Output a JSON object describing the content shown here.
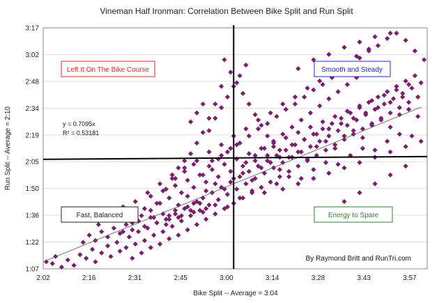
{
  "chart_data": {
    "type": "scatter",
    "title": "Vineman Half Ironman: Correlation Between Bike Split and Run Split",
    "xlabel": "Bike Split -- Average = 3:04",
    "ylabel": "Run Split -- Average = 2:10",
    "xlim_min": [
      122,
      247
    ],
    "ylim_min": [
      67,
      203
    ],
    "x_ticks": [
      "2:02",
      "2:16",
      "2:31",
      "2:45",
      "3:00",
      "3:14",
      "3:28",
      "3:43",
      "3:57"
    ],
    "y_ticks": [
      "1:07",
      "1:22",
      "1:36",
      "1:50",
      "2:05",
      "2:19",
      "2:34",
      "2:48",
      "3:02",
      "3:17"
    ],
    "grid": "horizontal",
    "marker": "diamond",
    "series_color": "#7a1f6e",
    "averages": {
      "bike_min": 184,
      "run_min": 130
    },
    "trendline": {
      "equation": "y = 0.7095x",
      "r2": "R² = 0.53181",
      "slope": 0.7095
    },
    "annotations": [
      {
        "text": "Left It On The Bike Course",
        "color": "#e8251f",
        "quadrant": "top-left"
      },
      {
        "text": "Smooth and Steady",
        "color": "#2222cc",
        "quadrant": "top-right"
      },
      {
        "text": "Fast, Balanced",
        "color": "#222222",
        "quadrant": "bottom-left"
      },
      {
        "text": "Energy to Spare",
        "color": "#2e7d32",
        "quadrant": "bottom-right"
      }
    ],
    "points": [
      [
        123,
        71
      ],
      [
        125,
        70
      ],
      [
        126,
        74
      ],
      [
        128,
        68
      ],
      [
        130,
        72
      ],
      [
        132,
        69
      ],
      [
        134,
        75
      ],
      [
        136,
        73
      ],
      [
        138,
        78
      ],
      [
        139,
        71
      ],
      [
        141,
        76
      ],
      [
        143,
        80
      ],
      [
        144,
        74
      ],
      [
        146,
        82
      ],
      [
        147,
        77
      ],
      [
        149,
        79
      ],
      [
        150,
        85
      ],
      [
        151,
        73
      ],
      [
        152,
        81
      ],
      [
        153,
        88
      ],
      [
        154,
        76
      ],
      [
        155,
        83
      ],
      [
        156,
        90
      ],
      [
        157,
        79
      ],
      [
        158,
        86
      ],
      [
        159,
        93
      ],
      [
        160,
        81
      ],
      [
        161,
        88
      ],
      [
        162,
        95
      ],
      [
        163,
        84
      ],
      [
        164,
        91
      ],
      [
        165,
        98
      ],
      [
        166,
        86
      ],
      [
        167,
        94
      ],
      [
        168,
        101
      ],
      [
        169,
        89
      ],
      [
        170,
        97
      ],
      [
        171,
        104
      ],
      [
        172,
        92
      ],
      [
        173,
        100
      ],
      [
        174,
        107
      ],
      [
        175,
        95
      ],
      [
        176,
        103
      ],
      [
        177,
        110
      ],
      [
        178,
        98
      ],
      [
        179,
        106
      ],
      [
        180,
        113
      ],
      [
        181,
        101
      ],
      [
        182,
        109
      ],
      [
        183,
        116
      ],
      [
        184,
        104
      ],
      [
        185,
        112
      ],
      [
        186,
        119
      ],
      [
        187,
        107
      ],
      [
        188,
        115
      ],
      [
        189,
        122
      ],
      [
        190,
        110
      ],
      [
        191,
        118
      ],
      [
        192,
        125
      ],
      [
        193,
        113
      ],
      [
        194,
        121
      ],
      [
        195,
        128
      ],
      [
        196,
        116
      ],
      [
        197,
        124
      ],
      [
        198,
        131
      ],
      [
        199,
        119
      ],
      [
        200,
        127
      ],
      [
        201,
        134
      ],
      [
        202,
        122
      ],
      [
        203,
        130
      ],
      [
        204,
        137
      ],
      [
        205,
        125
      ],
      [
        206,
        133
      ],
      [
        207,
        140
      ],
      [
        208,
        128
      ],
      [
        209,
        136
      ],
      [
        210,
        143
      ],
      [
        211,
        131
      ],
      [
        212,
        139
      ],
      [
        213,
        146
      ],
      [
        214,
        134
      ],
      [
        215,
        142
      ],
      [
        216,
        149
      ],
      [
        217,
        137
      ],
      [
        218,
        145
      ],
      [
        219,
        152
      ],
      [
        220,
        140
      ],
      [
        221,
        148
      ],
      [
        222,
        155
      ],
      [
        223,
        143
      ],
      [
        224,
        151
      ],
      [
        225,
        158
      ],
      [
        226,
        146
      ],
      [
        227,
        154
      ],
      [
        228,
        161
      ],
      [
        229,
        149
      ],
      [
        230,
        157
      ],
      [
        231,
        164
      ],
      [
        232,
        152
      ],
      [
        233,
        160
      ],
      [
        234,
        167
      ],
      [
        235,
        155
      ],
      [
        236,
        163
      ],
      [
        237,
        170
      ],
      [
        238,
        158
      ],
      [
        239,
        166
      ],
      [
        240,
        173
      ],
      [
        241,
        161
      ],
      [
        242,
        169
      ],
      [
        243,
        176
      ],
      [
        244,
        164
      ],
      [
        245,
        172
      ],
      [
        140,
        92
      ],
      [
        142,
        98
      ],
      [
        145,
        95
      ],
      [
        148,
        102
      ],
      [
        150,
        99
      ],
      [
        152,
        105
      ],
      [
        155,
        101
      ],
      [
        157,
        108
      ],
      [
        159,
        104
      ],
      [
        161,
        111
      ],
      [
        163,
        107
      ],
      [
        165,
        114
      ],
      [
        167,
        110
      ],
      [
        169,
        117
      ],
      [
        171,
        113
      ],
      [
        173,
        120
      ],
      [
        175,
        116
      ],
      [
        177,
        123
      ],
      [
        179,
        119
      ],
      [
        181,
        126
      ],
      [
        183,
        122
      ],
      [
        185,
        129
      ],
      [
        187,
        125
      ],
      [
        189,
        132
      ],
      [
        191,
        128
      ],
      [
        193,
        135
      ],
      [
        195,
        131
      ],
      [
        197,
        138
      ],
      [
        199,
        134
      ],
      [
        201,
        141
      ],
      [
        203,
        137
      ],
      [
        205,
        144
      ],
      [
        207,
        140
      ],
      [
        209,
        147
      ],
      [
        211,
        143
      ],
      [
        213,
        150
      ],
      [
        215,
        146
      ],
      [
        217,
        153
      ],
      [
        219,
        149
      ],
      [
        221,
        156
      ],
      [
        223,
        152
      ],
      [
        225,
        159
      ],
      [
        227,
        155
      ],
      [
        229,
        162
      ],
      [
        231,
        158
      ],
      [
        233,
        165
      ],
      [
        235,
        161
      ],
      [
        237,
        168
      ],
      [
        239,
        164
      ],
      [
        241,
        171
      ],
      [
        148,
        88
      ],
      [
        151,
        93
      ],
      [
        154,
        97
      ],
      [
        157,
        100
      ],
      [
        160,
        104
      ],
      [
        163,
        97
      ],
      [
        166,
        103
      ],
      [
        169,
        108
      ],
      [
        172,
        105
      ],
      [
        175,
        111
      ],
      [
        178,
        115
      ],
      [
        181,
        112
      ],
      [
        184,
        118
      ],
      [
        187,
        121
      ],
      [
        190,
        117
      ],
      [
        193,
        124
      ],
      [
        196,
        127
      ],
      [
        199,
        123
      ],
      [
        202,
        130
      ],
      [
        205,
        133
      ],
      [
        208,
        129
      ],
      [
        211,
        136
      ],
      [
        214,
        139
      ],
      [
        217,
        135
      ],
      [
        220,
        142
      ],
      [
        223,
        145
      ],
      [
        226,
        141
      ],
      [
        229,
        148
      ],
      [
        232,
        151
      ],
      [
        235,
        147
      ],
      [
        238,
        154
      ],
      [
        241,
        157
      ],
      [
        244,
        153
      ],
      [
        156,
        110
      ],
      [
        160,
        115
      ],
      [
        164,
        120
      ],
      [
        168,
        124
      ],
      [
        172,
        128
      ],
      [
        176,
        133
      ],
      [
        180,
        137
      ],
      [
        184,
        142
      ],
      [
        188,
        146
      ],
      [
        192,
        151
      ],
      [
        196,
        155
      ],
      [
        200,
        160
      ],
      [
        204,
        164
      ],
      [
        208,
        169
      ],
      [
        212,
        173
      ],
      [
        216,
        178
      ],
      [
        220,
        182
      ],
      [
        224,
        187
      ],
      [
        228,
        191
      ],
      [
        158,
        96
      ],
      [
        162,
        92
      ],
      [
        166,
        96
      ],
      [
        170,
        100
      ],
      [
        174,
        99
      ],
      [
        178,
        103
      ],
      [
        182,
        102
      ],
      [
        186,
        107
      ],
      [
        190,
        111
      ],
      [
        194,
        110
      ],
      [
        198,
        115
      ],
      [
        202,
        119
      ],
      [
        206,
        118
      ],
      [
        210,
        123
      ],
      [
        214,
        127
      ],
      [
        218,
        126
      ],
      [
        222,
        131
      ],
      [
        226,
        135
      ],
      [
        230,
        134
      ],
      [
        234,
        139
      ],
      [
        238,
        143
      ],
      [
        242,
        142
      ],
      [
        165,
        118
      ],
      [
        168,
        122
      ],
      [
        171,
        126
      ],
      [
        174,
        120
      ],
      [
        177,
        128
      ],
      [
        180,
        131
      ],
      [
        183,
        135
      ],
      [
        186,
        138
      ],
      [
        189,
        142
      ],
      [
        192,
        146
      ],
      [
        195,
        149
      ],
      [
        198,
        153
      ],
      [
        201,
        157
      ],
      [
        204,
        160
      ],
      [
        207,
        164
      ],
      [
        210,
        168
      ],
      [
        213,
        171
      ],
      [
        216,
        175
      ],
      [
        219,
        179
      ],
      [
        222,
        182
      ],
      [
        225,
        186
      ],
      [
        228,
        190
      ],
      [
        231,
        193
      ],
      [
        234,
        197
      ],
      [
        237,
        200
      ],
      [
        176,
        125
      ],
      [
        179,
        129
      ],
      [
        182,
        133
      ],
      [
        185,
        137
      ],
      [
        188,
        127
      ],
      [
        191,
        131
      ],
      [
        194,
        135
      ],
      [
        197,
        139
      ],
      [
        200,
        143
      ],
      [
        203,
        147
      ],
      [
        206,
        151
      ],
      [
        209,
        155
      ],
      [
        212,
        159
      ],
      [
        215,
        163
      ],
      [
        218,
        167
      ],
      [
        221,
        171
      ],
      [
        224,
        175
      ],
      [
        227,
        179
      ],
      [
        181,
        185
      ],
      [
        183,
        178
      ],
      [
        185,
        172
      ],
      [
        187,
        166
      ],
      [
        189,
        160
      ],
      [
        191,
        154
      ],
      [
        193,
        148
      ],
      [
        195,
        142
      ],
      [
        197,
        136
      ],
      [
        199,
        130
      ],
      [
        135,
        82
      ],
      [
        137,
        86
      ],
      [
        139,
        83
      ],
      [
        141,
        88
      ],
      [
        143,
        85
      ],
      [
        145,
        90
      ],
      [
        147,
        87
      ],
      [
        149,
        92
      ],
      [
        151,
        89
      ],
      [
        153,
        94
      ],
      [
        155,
        91
      ],
      [
        157,
        96
      ],
      [
        159,
        93
      ],
      [
        161,
        98
      ],
      [
        163,
        95
      ],
      [
        165,
        100
      ],
      [
        167,
        97
      ],
      [
        169,
        102
      ],
      [
        171,
        99
      ],
      [
        173,
        104
      ],
      [
        175,
        101
      ],
      [
        170,
        150
      ],
      [
        172,
        155
      ],
      [
        174,
        160
      ],
      [
        176,
        145
      ],
      [
        178,
        152
      ],
      [
        180,
        158
      ],
      [
        182,
        164
      ],
      [
        184,
        170
      ],
      [
        186,
        176
      ],
      [
        188,
        182
      ],
      [
        200,
        112
      ],
      [
        205,
        115
      ],
      [
        210,
        118
      ],
      [
        215,
        121
      ],
      [
        220,
        124
      ],
      [
        225,
        127
      ],
      [
        230,
        130
      ],
      [
        235,
        133
      ],
      [
        240,
        136
      ],
      [
        245,
        139
      ],
      [
        205,
        180
      ],
      [
        210,
        185
      ],
      [
        215,
        188
      ],
      [
        220,
        192
      ],
      [
        225,
        195
      ],
      [
        230,
        198
      ],
      [
        235,
        200
      ],
      [
        240,
        196
      ],
      [
        243,
        190
      ],
      [
        246,
        185
      ],
      [
        215,
        100
      ],
      [
        220,
        105
      ],
      [
        225,
        110
      ],
      [
        230,
        115
      ],
      [
        235,
        120
      ],
      [
        240,
        125
      ],
      [
        180,
        170
      ],
      [
        178,
        160
      ],
      [
        176,
        152
      ],
      [
        174,
        144
      ],
      [
        172,
        138
      ],
      [
        170,
        132
      ],
      [
        168,
        128
      ],
      [
        166,
        124
      ],
      [
        164,
        118
      ],
      [
        162,
        112
      ]
    ]
  }
}
